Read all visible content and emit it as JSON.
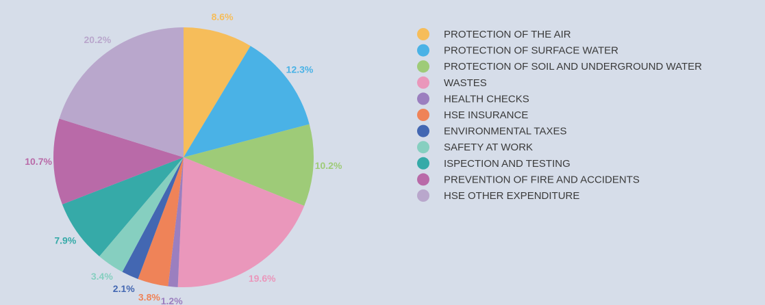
{
  "chart_data": {
    "type": "pie",
    "categories": [
      "PROTECTION OF THE AIR",
      "PROTECTION OF SURFACE WATER",
      "PROTECTION OF SOIL AND UNDERGROUND WATER",
      "WASTES",
      "HEALTH CHECKS",
      "HSE INSURANCE",
      "ENVIRONMENTAL TAXES",
      "SAFETY AT WORK",
      "ISPECTION AND TESTING",
      "PREVENTION OF FIRE AND ACCIDENTS",
      "HSE OTHER EXPENDITURE"
    ],
    "values": [
      8.6,
      12.3,
      10.2,
      19.6,
      1.2,
      3.8,
      2.1,
      3.4,
      7.9,
      10.7,
      20.2
    ],
    "value_labels": [
      "8.6%",
      "12.3%",
      "10.2%",
      "19.6%",
      "1.2%",
      "3.8%",
      "2.1%",
      "3.4%",
      "7.9%",
      "10.7%",
      "20.2%"
    ],
    "colors": [
      "#f6bd5a",
      "#4ab2e6",
      "#9ecb78",
      "#ea97bb",
      "#9b7fbf",
      "#ef8358",
      "#4367b2",
      "#86cfc0",
      "#36aaa8",
      "#b96aa8",
      "#b9a7cc"
    ],
    "legend": "right"
  }
}
